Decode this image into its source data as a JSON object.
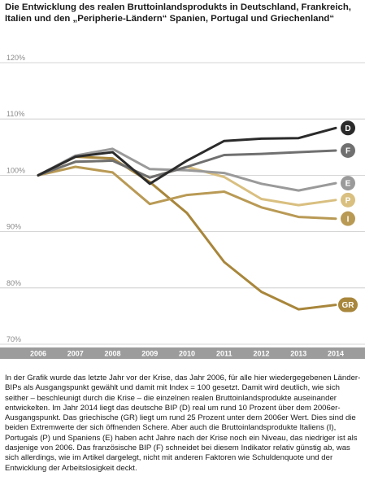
{
  "title": "Die Entwicklung des realen Bruttoinlandsprodukts in Deutschland, Frankreich, Italien und den „Peripherie-Ländern“ Spanien, Portugal und Griechenland“",
  "caption": "In der Grafik wurde das letzte Jahr vor der Krise, das Jahr 2006, für alle hier wiedergegebenen Länder-BIPs als Ausgangspunkt gewählt und damit mit Index = 100 gesetzt. Damit wird deutlich, wie sich seither – beschleunigt durch die Krise – die einzelnen realen Bruttoinlandsprodukte auseinander entwickelten. Im Jahr 2014 liegt das deutsche BIP (D) real um rund 10 Prozent über dem 2006er-Ausgangspunkt. Das griechische (GR) liegt um rund 25 Prozent unter dem 2006er Wert. Dies sind die beiden Extremwerte der sich öffnenden Schere. Aber auch die Bruttoinlandsprodukte Italiens (I), Portugals (P) und Spaniens (E) haben acht Jahre nach der Krise noch ein Niveau, das niedriger ist als dasjenige von 2006. Das französische BIP (F) schneidet bei diesem Indikator relativ günstig ab, was sich allerdings, wie im Artikel dargelegt, nicht mit anderen Faktoren wie Schuldenquote und der Entwicklung der Arbeitslosigkeit deckt.",
  "colors": {
    "background": "#ffffff",
    "axis_band": "#9c9c9c",
    "grid": "#c8c8c8"
  },
  "chart_data": {
    "type": "line",
    "x": [
      2006,
      2007,
      2008,
      2009,
      2010,
      2011,
      2012,
      2013,
      2014
    ],
    "ylim": [
      70,
      120
    ],
    "yticks": [
      70,
      80,
      90,
      100,
      110,
      120
    ],
    "ytick_labels": [
      "70%",
      "80%",
      "90%",
      "100%",
      "110%",
      "120%"
    ],
    "xtick_labels": [
      "2006",
      "2007",
      "2008",
      "2009",
      "2010",
      "2011",
      "2012",
      "2013",
      "2014"
    ],
    "grid": true,
    "series": [
      {
        "name": "D",
        "color": "#2b2b2b",
        "values": [
          100,
          103.3,
          104.1,
          98.5,
          102.6,
          106.1,
          106.5,
          106.6,
          108.4
        ]
      },
      {
        "name": "F",
        "color": "#707070",
        "values": [
          100,
          102.4,
          102.6,
          99.6,
          101.5,
          103.6,
          103.8,
          104.1,
          104.4
        ]
      },
      {
        "name": "E",
        "color": "#9a9a9a",
        "values": [
          100,
          103.5,
          104.7,
          101.1,
          100.9,
          100.4,
          98.5,
          97.3,
          98.6
        ]
      },
      {
        "name": "P",
        "color": "#d9bf80",
        "values": [
          100,
          102.4,
          102.6,
          99.6,
          101.5,
          99.7,
          95.8,
          94.7,
          95.6
        ]
      },
      {
        "name": "I",
        "color": "#b99a55",
        "values": [
          100,
          101.5,
          100.5,
          94.9,
          96.5,
          97.1,
          94.3,
          92.6,
          92.3
        ]
      },
      {
        "name": "GR",
        "color": "#a8863b",
        "values": [
          100,
          103.3,
          103.0,
          98.8,
          93.3,
          84.6,
          79.3,
          76.2,
          77.0
        ]
      }
    ]
  }
}
